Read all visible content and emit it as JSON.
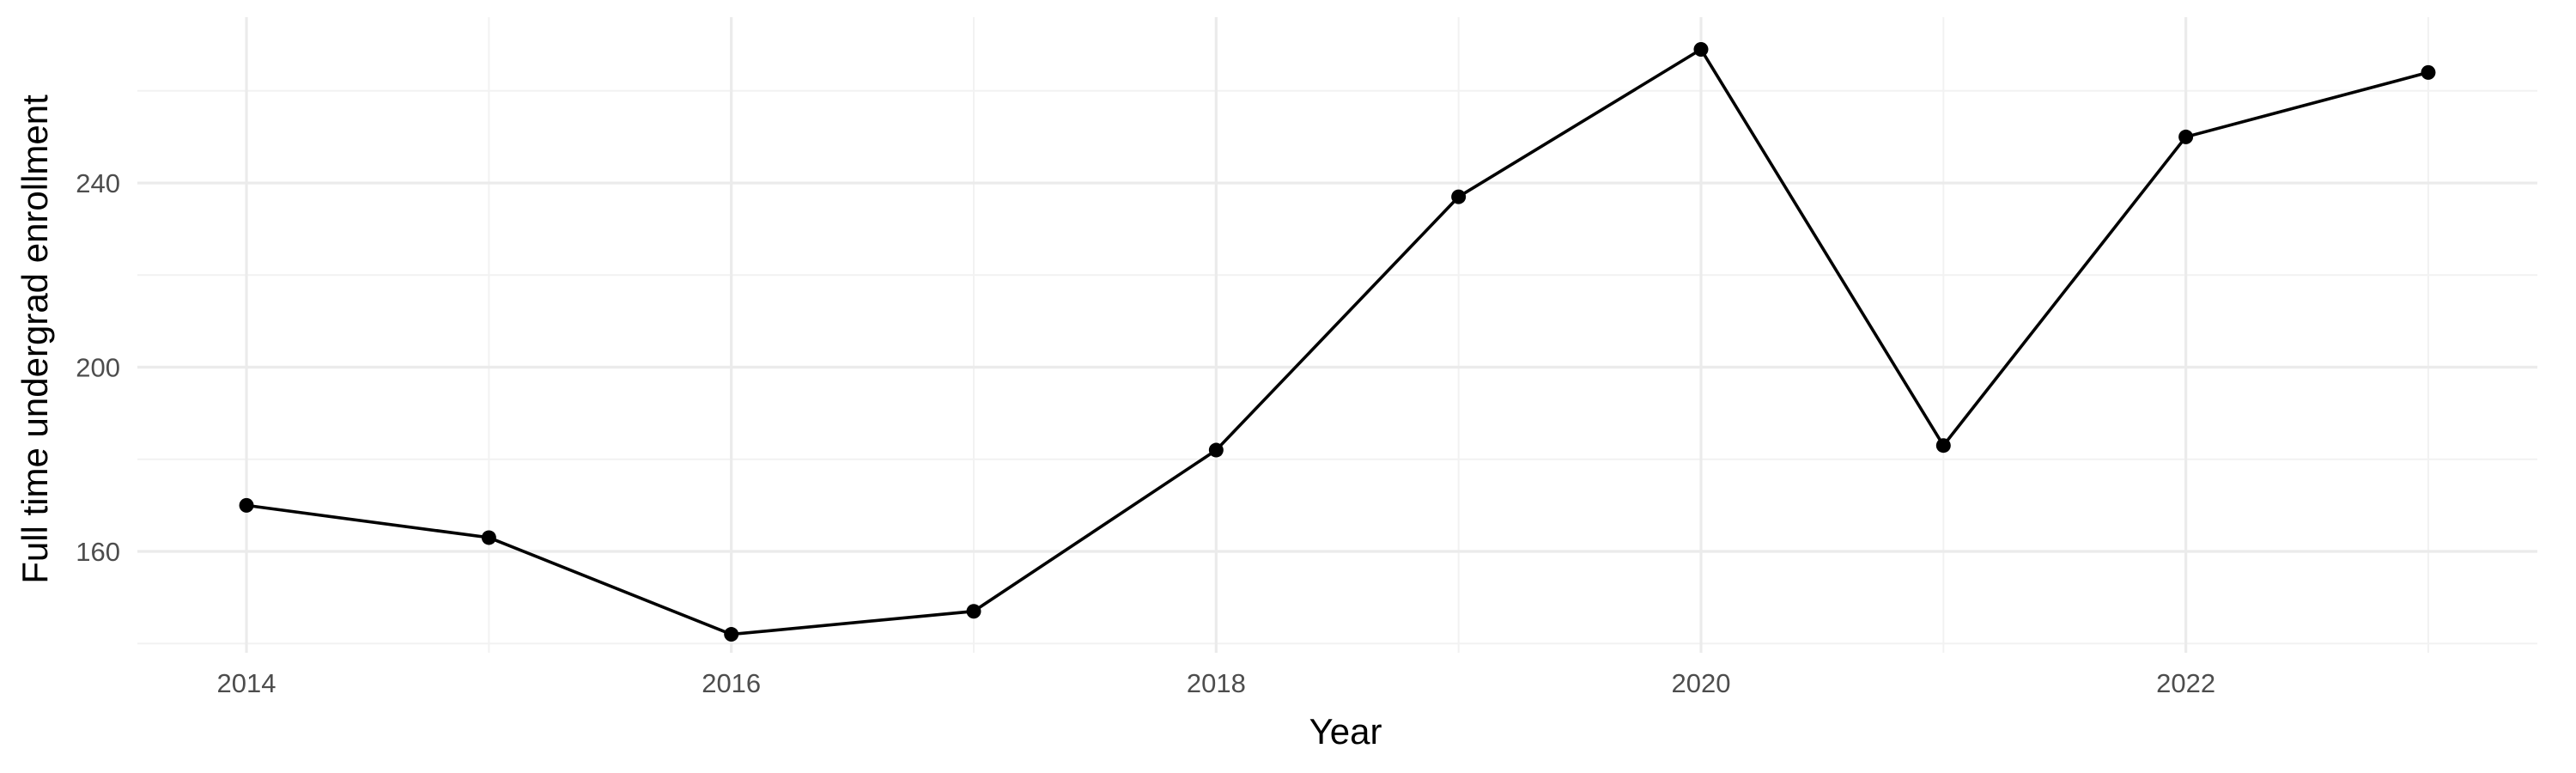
{
  "chart_data": {
    "type": "line",
    "title": "",
    "xlabel": "Year",
    "ylabel": "Full time undergrad enrollment",
    "x": [
      2014,
      2015,
      2016,
      2017,
      2018,
      2019,
      2020,
      2021,
      2022,
      2023
    ],
    "series": [
      {
        "values": [
          170,
          163,
          142,
          147,
          182,
          237,
          269,
          183,
          250,
          264
        ],
        "color": "#000000"
      }
    ],
    "xlim": [
      2013.55,
      2023.45
    ],
    "ylim": [
      138,
      276
    ],
    "xticks": [
      2014,
      2016,
      2018,
      2020,
      2022
    ],
    "xtick_labels": [
      "2014",
      "2016",
      "2018",
      "2020",
      "2022"
    ],
    "yticks": [
      160,
      200,
      240
    ],
    "ytick_labels": [
      "160",
      "200",
      "240"
    ],
    "x_minor_ticks": [
      2015,
      2017,
      2019,
      2021,
      2023
    ],
    "y_minor_ticks": [
      140,
      180,
      220,
      260
    ],
    "grid": true,
    "legend": "none",
    "colors": {
      "line": "#000000",
      "grid_major": "#ebebeb",
      "grid_minor": "#f2f2f2",
      "tick_text": "#4d4d4d",
      "background": "#ffffff"
    }
  }
}
